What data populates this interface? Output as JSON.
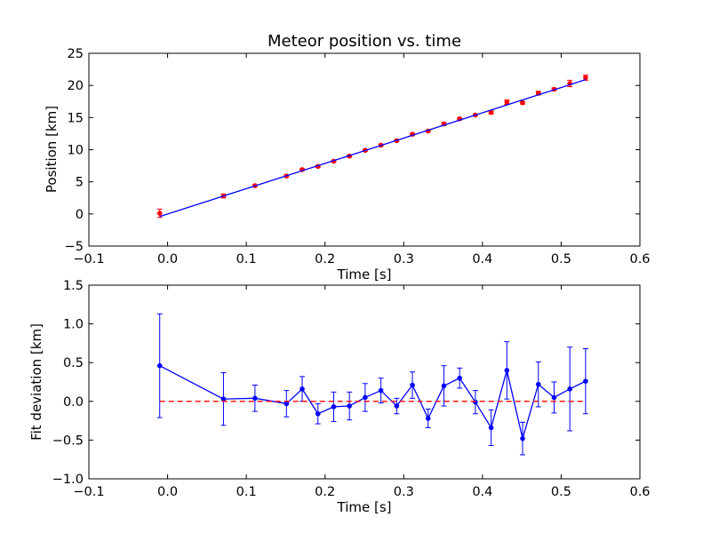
{
  "colors": {
    "data": "#ff0000",
    "fit": "#0000ff",
    "zero_line": "#ff0000",
    "axes": "#000000"
  },
  "chart_data": [
    {
      "type": "scatter",
      "title": "Meteor position vs. time",
      "xlabel": "Time [s]",
      "ylabel": "Position [km]",
      "xlim": [
        -0.1,
        0.6
      ],
      "ylim": [
        -5,
        25
      ],
      "xticks": [
        "−0.1",
        "0.0",
        "0.1",
        "0.2",
        "0.3",
        "0.4",
        "0.5",
        "0.6"
      ],
      "yticks": [
        "−5",
        "0",
        "5",
        "10",
        "15",
        "20",
        "25"
      ],
      "grid": false,
      "series": [
        {
          "kind": "errorbar-points",
          "color": "#ff0000",
          "x": [
            -0.01,
            0.071,
            0.111,
            0.151,
            0.171,
            0.191,
            0.211,
            0.231,
            0.251,
            0.271,
            0.291,
            0.311,
            0.331,
            0.351,
            0.371,
            0.391,
            0.411,
            0.431,
            0.451,
            0.471,
            0.491,
            0.511,
            0.531
          ],
          "y": [
            0.1,
            2.8,
            4.4,
            5.9,
            6.9,
            7.4,
            8.2,
            9.0,
            9.9,
            10.7,
            11.4,
            12.4,
            12.9,
            14.0,
            14.8,
            15.4,
            15.8,
            17.4,
            17.3,
            18.8,
            19.4,
            20.3,
            21.2
          ],
          "yerr": [
            0.65,
            0.3,
            0.15,
            0.15,
            0.15,
            0.15,
            0.15,
            0.15,
            0.15,
            0.15,
            0.1,
            0.15,
            0.1,
            0.25,
            0.15,
            0.15,
            0.25,
            0.35,
            0.2,
            0.3,
            0.2,
            0.5,
            0.4
          ]
        },
        {
          "kind": "fit-line",
          "color": "#0000ff",
          "x": [
            -0.01,
            0.531
          ],
          "y": [
            -0.4,
            20.9
          ]
        }
      ]
    },
    {
      "type": "line",
      "xlabel": "Time [s]",
      "ylabel": "Fit deviation [km]",
      "xlim": [
        -0.1,
        0.6
      ],
      "ylim": [
        -1.0,
        1.5
      ],
      "xticks": [
        "−0.1",
        "0.0",
        "0.1",
        "0.2",
        "0.3",
        "0.4",
        "0.5",
        "0.6"
      ],
      "yticks": [
        "−1.0",
        "−0.5",
        "0.0",
        "0.5",
        "1.0",
        "1.5"
      ],
      "grid": false,
      "series": [
        {
          "kind": "errorbar-line",
          "color": "#0000ff",
          "x": [
            -0.01,
            0.071,
            0.111,
            0.151,
            0.171,
            0.191,
            0.211,
            0.231,
            0.251,
            0.271,
            0.291,
            0.311,
            0.331,
            0.351,
            0.371,
            0.391,
            0.411,
            0.431,
            0.451,
            0.471,
            0.491,
            0.511,
            0.531
          ],
          "y": [
            0.46,
            0.03,
            0.04,
            -0.03,
            0.16,
            -0.16,
            -0.07,
            -0.06,
            0.05,
            0.14,
            -0.06,
            0.21,
            -0.22,
            0.2,
            0.3,
            -0.01,
            -0.34,
            0.4,
            -0.48,
            0.22,
            0.05,
            0.16,
            0.26
          ],
          "yerr": [
            0.67,
            0.34,
            0.17,
            0.17,
            0.16,
            0.13,
            0.19,
            0.18,
            0.18,
            0.16,
            0.1,
            0.17,
            0.12,
            0.26,
            0.13,
            0.15,
            0.23,
            0.37,
            0.21,
            0.29,
            0.2,
            0.54,
            0.42
          ]
        },
        {
          "kind": "zero-line",
          "color": "#ff0000",
          "dashed": true,
          "x": [
            -0.01,
            0.531
          ],
          "y": [
            0,
            0
          ]
        }
      ]
    }
  ]
}
